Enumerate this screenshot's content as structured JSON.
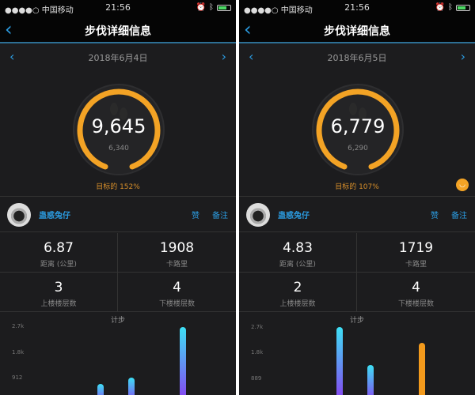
{
  "panels": [
    {
      "status": {
        "carrier": "●●●●○ 中国移动",
        "time": "21:56"
      },
      "title": "步伐详细信息",
      "date": "2018年6月4日",
      "steps": "9,645",
      "goal_steps": "6,340",
      "goal_text": "目标的 152%",
      "goal_progress_percent": 152,
      "user": {
        "name": "蛊惑兔仔",
        "like": "赞",
        "note": "备注"
      },
      "stats": [
        {
          "value": "6.87",
          "label": "距离 (公里)"
        },
        {
          "value": "1908",
          "label": "卡路里"
        },
        {
          "value": "3",
          "label": "上楼楼层数"
        },
        {
          "value": "4",
          "label": "下楼楼层数"
        }
      ],
      "chart": {
        "title": "计步",
        "ticks": [
          {
            "label": "2.7k",
            "value": 2700
          },
          {
            "label": "1.8k",
            "value": 1800
          },
          {
            "label": "912",
            "value": 912
          }
        ],
        "bars": [
          {
            "slot": 9,
            "value": 700,
            "color": "gradient"
          },
          {
            "slot": 12,
            "value": 900,
            "color": "gradient"
          },
          {
            "slot": 17,
            "value": 2680,
            "color": "gradient"
          }
        ]
      }
    },
    {
      "status": {
        "carrier": "●●●●○ 中国移动",
        "time": "21:56"
      },
      "title": "步伐详细信息",
      "date": "2018年6月5日",
      "steps": "6,779",
      "goal_steps": "6,290",
      "goal_text": "目标的 107%",
      "goal_progress_percent": 107,
      "user": {
        "name": "蛊惑兔仔",
        "like": "赞",
        "note": "备注"
      },
      "stats": [
        {
          "value": "4.83",
          "label": "距离 (公里)"
        },
        {
          "value": "1719",
          "label": "卡路里"
        },
        {
          "value": "2",
          "label": "上楼楼层数"
        },
        {
          "value": "4",
          "label": "下楼楼层数"
        }
      ],
      "chart": {
        "title": "计步",
        "ticks": [
          {
            "label": "2.7k",
            "value": 2700
          },
          {
            "label": "1.8k",
            "value": 1800
          },
          {
            "label": "889",
            "value": 889
          }
        ],
        "bars": [
          {
            "slot": 9,
            "value": 2700,
            "color": "gradient"
          },
          {
            "slot": 12,
            "value": 1370,
            "color": "gradient"
          },
          {
            "slot": 17,
            "value": 2150,
            "color": "#f39a1c"
          }
        ]
      }
    }
  ],
  "colors": {
    "accent": "#2b9be0",
    "ring": "#f3a325",
    "background": "#1c1c1e"
  }
}
